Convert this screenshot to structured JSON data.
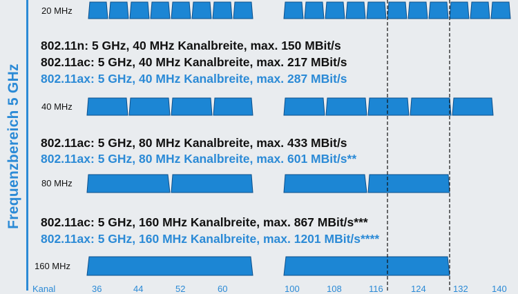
{
  "band_label": "Frequenzbereich 5 GHz",
  "width_labels": {
    "w20": "20 MHz",
    "w40": "40 MHz",
    "w80": "80 MHz",
    "w160": "160 MHz"
  },
  "headings": {
    "n40": "802.11n: 5 GHz, 40 MHz Kanalbreite, max. 150 MBit/s",
    "ac40": "802.11ac: 5 GHz, 40 MHz Kanalbreite, max. 217 MBit/s",
    "ax40": "802.11ax: 5 GHz, 40 MHz Kanalbreite, max. 287 MBit/s",
    "ac80": "802.11ac: 5 GHz, 80 MHz Kanalbreite, max. 433 MBit/s",
    "ax80": "802.11ax: 5 GHz, 80 MHz Kanalbreite, max. 601 MBit/s**",
    "ac160": "802.11ac: 5 GHz, 160 MHz Kanalbreite, max. 867 MBit/s***",
    "ax160": "802.11ax: 5 GHz, 160 MHz Kanalbreite, max. 1201 MBit/s****"
  },
  "kanal_label": "Kanal",
  "channel_numbers": [
    "36",
    "44",
    "52",
    "60",
    "100",
    "108",
    "116",
    "124",
    "132",
    "140"
  ],
  "colors": {
    "accent": "#2b8ad6",
    "channel_fill": "#1c86d4",
    "channel_stroke": "#0d4f8a",
    "text": "#111111",
    "background": "#e9ecef"
  }
}
